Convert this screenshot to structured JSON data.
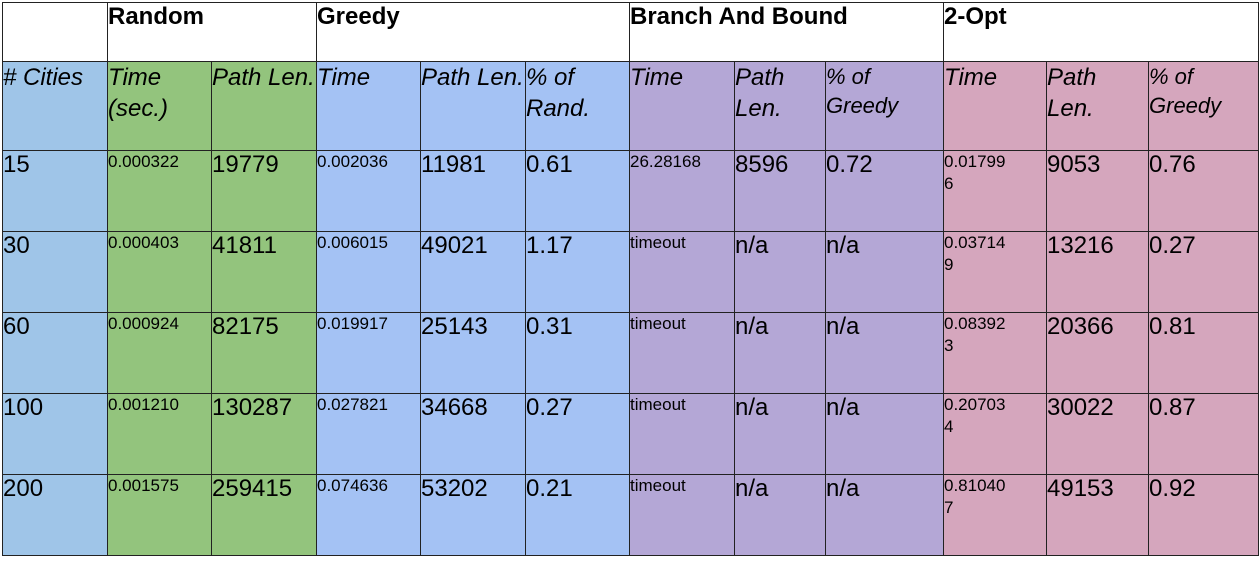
{
  "colors": {
    "cities": "#9fc5e8",
    "random": "#93c47d",
    "greedy": "#a4c2f4",
    "branch_and_bound": "#b4a7d6",
    "two_opt": "#d5a6bd"
  },
  "groups": {
    "blank": "",
    "random": "Random",
    "greedy": "Greedy",
    "bb": "Branch And Bound",
    "opt": "2-Opt"
  },
  "columns": {
    "cities": "# Cities",
    "rand_time": "Time (sec.)",
    "rand_len": "Path Len.",
    "greedy_time": "Time",
    "greedy_len": "Path Len.",
    "greedy_pct": "% of Rand.",
    "bb_time": "Time",
    "bb_len": "Path Len.",
    "bb_pct": "% of Greedy",
    "opt_time": "Time",
    "opt_len": "Path Len.",
    "opt_pct": "% of Greedy"
  },
  "rows": [
    {
      "cities": "15",
      "rand_time": "0.000322",
      "rand_len": "19779",
      "greedy_time": "0.002036",
      "greedy_len": "11981",
      "greedy_pct": "0.61",
      "bb_time": "26.28168",
      "bb_len": "8596",
      "bb_pct": "0.72",
      "opt_time": "0.017996",
      "opt_len": "9053",
      "opt_pct": "0.76"
    },
    {
      "cities": "30",
      "rand_time": "0.000403",
      "rand_len": "41811",
      "greedy_time": "0.006015",
      "greedy_len": "49021",
      "greedy_pct": "1.17",
      "bb_time": "timeout",
      "bb_len": "n/a",
      "bb_pct": "n/a",
      "opt_time": "0.037149",
      "opt_len": "13216",
      "opt_pct": "0.27"
    },
    {
      "cities": "60",
      "rand_time": "0.000924",
      "rand_len": "82175",
      "greedy_time": "0.019917",
      "greedy_len": "25143",
      "greedy_pct": "0.31",
      "bb_time": "timeout",
      "bb_len": "n/a",
      "bb_pct": "n/a",
      "opt_time": "0.083923",
      "opt_len": "20366",
      "opt_pct": "0.81"
    },
    {
      "cities": "100",
      "rand_time": "0.001210",
      "rand_len": "130287",
      "greedy_time": "0.027821",
      "greedy_len": "34668",
      "greedy_pct": "0.27",
      "bb_time": "timeout",
      "bb_len": "n/a",
      "bb_pct": "n/a",
      "opt_time": "0.207034",
      "opt_len": "30022",
      "opt_pct": "0.87"
    },
    {
      "cities": "200",
      "rand_time": "0.001575",
      "rand_len": "259415",
      "greedy_time": "0.074636",
      "greedy_len": "53202",
      "greedy_pct": "0.21",
      "bb_time": "timeout",
      "bb_len": "n/a",
      "bb_pct": "n/a",
      "opt_time": "0.810407",
      "opt_len": "49153",
      "opt_pct": "0.92"
    }
  ]
}
